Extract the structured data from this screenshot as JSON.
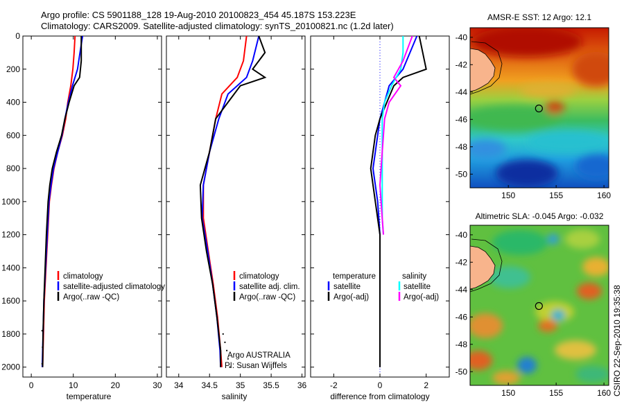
{
  "title": {
    "line1": "Argo profile: CS 5901188_128 19-Aug-2010 20100823_454 45.187S 153.223E",
    "line2": "Climatology: CARS2009. Satellite-adjusted climatology: synTS_20100821.nc (1.2d later)"
  },
  "side_text": "CSIRO 22-Sep-2010 19:35:38",
  "colors": {
    "climatology": "#ff0000",
    "satellite": "#0000ff",
    "argo": "#000000",
    "salinity_satellite": "#00ffff",
    "salinity_argo": "#ff00ff"
  },
  "chart_data": [
    {
      "type": "line",
      "name": "temperature-profile",
      "xlabel": "temperature",
      "xlim": [
        -2,
        31
      ],
      "ylim": [
        2060,
        0
      ],
      "xticks": [
        "0",
        "10",
        "20",
        "30"
      ],
      "yticks": [
        "0",
        "200",
        "400",
        "600",
        "800",
        "1000",
        "1200",
        "1400",
        "1600",
        "1800",
        "2000"
      ],
      "legend": [
        "climatology",
        "satellite-adjusted climatology",
        "Argo(..raw -QC)"
      ],
      "series": [
        {
          "name": "climatology",
          "points": [
            [
              10.4,
              0
            ],
            [
              10.2,
              100
            ],
            [
              9.9,
              200
            ],
            [
              9.4,
              300
            ],
            [
              8.7,
              400
            ],
            [
              8.2,
              500
            ],
            [
              7.4,
              600
            ],
            [
              6.3,
              700
            ],
            [
              5.4,
              800
            ],
            [
              4.8,
              900
            ],
            [
              4.3,
              1000
            ],
            [
              3.9,
              1200
            ],
            [
              3.5,
              1400
            ],
            [
              3.1,
              1600
            ],
            [
              2.9,
              1800
            ],
            [
              2.7,
              2000
            ]
          ]
        },
        {
          "name": "satellite",
          "points": [
            [
              12.2,
              0
            ],
            [
              11.6,
              100
            ],
            [
              11.0,
              200
            ],
            [
              9.8,
              300
            ],
            [
              8.8,
              400
            ],
            [
              8.0,
              500
            ],
            [
              7.3,
              600
            ],
            [
              6.3,
              700
            ],
            [
              5.3,
              800
            ],
            [
              4.7,
              900
            ],
            [
              4.2,
              1000
            ],
            [
              3.8,
              1200
            ],
            [
              3.4,
              1400
            ],
            [
              3.0,
              1600
            ],
            [
              2.8,
              1800
            ],
            [
              2.6,
              2000
            ]
          ]
        },
        {
          "name": "argo",
          "points": [
            [
              11.9,
              0
            ],
            [
              11.9,
              150
            ],
            [
              11.5,
              250
            ],
            [
              10.2,
              300
            ],
            [
              9.0,
              400
            ],
            [
              8.0,
              500
            ],
            [
              7.2,
              600
            ],
            [
              6.0,
              700
            ],
            [
              5.0,
              800
            ],
            [
              4.4,
              900
            ],
            [
              4.0,
              1000
            ],
            [
              3.6,
              1200
            ],
            [
              3.3,
              1400
            ],
            [
              3.0,
              1600
            ],
            [
              2.8,
              1800
            ],
            [
              2.7,
              2000
            ]
          ]
        }
      ]
    },
    {
      "type": "line",
      "name": "salinity-profile",
      "xlabel": "salinity",
      "xlim": [
        33.8,
        36.05
      ],
      "ylim": [
        2060,
        0
      ],
      "xticks": [
        "34",
        "34.5",
        "35",
        "35.5",
        "36"
      ],
      "legend": [
        "climatology",
        "satellite adj. clim.",
        "Argo(..raw -QC)"
      ],
      "annotation": [
        "Argo AUSTRALIA",
        "PI: Susan Wijffels"
      ],
      "series": [
        {
          "name": "climatology",
          "points": [
            [
              35.1,
              0
            ],
            [
              35.05,
              150
            ],
            [
              34.95,
              250
            ],
            [
              34.7,
              350
            ],
            [
              34.6,
              500
            ],
            [
              34.5,
              700
            ],
            [
              34.4,
              900
            ],
            [
              34.4,
              1100
            ],
            [
              34.48,
              1300
            ],
            [
              34.56,
              1500
            ],
            [
              34.63,
              1700
            ],
            [
              34.68,
              1900
            ],
            [
              34.7,
              2000
            ]
          ]
        },
        {
          "name": "satellite",
          "points": [
            [
              35.3,
              0
            ],
            [
              35.2,
              150
            ],
            [
              35.1,
              250
            ],
            [
              34.8,
              350
            ],
            [
              34.65,
              500
            ],
            [
              34.5,
              700
            ],
            [
              34.4,
              900
            ],
            [
              34.38,
              1100
            ],
            [
              34.47,
              1300
            ],
            [
              34.55,
              1500
            ],
            [
              34.62,
              1700
            ],
            [
              34.67,
              1900
            ],
            [
              34.68,
              2000
            ]
          ]
        },
        {
          "name": "argo",
          "points": [
            [
              35.3,
              0
            ],
            [
              35.4,
              100
            ],
            [
              35.2,
              200
            ],
            [
              35.4,
              250
            ],
            [
              35.0,
              300
            ],
            [
              34.8,
              400
            ],
            [
              34.6,
              500
            ],
            [
              34.5,
              700
            ],
            [
              34.35,
              900
            ],
            [
              34.37,
              1100
            ],
            [
              34.45,
              1300
            ],
            [
              34.55,
              1500
            ],
            [
              34.62,
              1700
            ],
            [
              34.68,
              1900
            ],
            [
              34.68,
              2000
            ]
          ]
        }
      ]
    },
    {
      "type": "line",
      "name": "difference-profile",
      "xlabel": "difference from climatology",
      "xlim": [
        -3,
        3
      ],
      "ylim": [
        2060,
        0
      ],
      "xticks": [
        "-2",
        "0",
        "2"
      ],
      "legend_titles": [
        "temperature",
        "salinity"
      ],
      "legend": [
        "satellite",
        "Argo(-adj)",
        "satellite",
        "Argo(-adj)"
      ],
      "series": [
        {
          "name": "temperature-satellite",
          "points": [
            [
              1.6,
              0
            ],
            [
              1.3,
              100
            ],
            [
              1.0,
              200
            ],
            [
              0.4,
              300
            ],
            [
              0.2,
              400
            ],
            [
              0.0,
              500
            ],
            [
              -0.1,
              600
            ],
            [
              -0.3,
              800
            ],
            [
              -0.1,
              1000
            ],
            [
              0.0,
              1200
            ],
            [
              0.0,
              1600
            ],
            [
              0.0,
              2000
            ]
          ]
        },
        {
          "name": "temperature-argo",
          "points": [
            [
              1.7,
              0
            ],
            [
              2.0,
              200
            ],
            [
              1.0,
              250
            ],
            [
              0.6,
              300
            ],
            [
              0.3,
              400
            ],
            [
              0.0,
              500
            ],
            [
              -0.2,
              600
            ],
            [
              -0.4,
              800
            ],
            [
              -0.2,
              1000
            ],
            [
              0.0,
              1200
            ],
            [
              0.0,
              1600
            ],
            [
              0.0,
              2000
            ]
          ]
        },
        {
          "name": "salinity-satellite",
          "points": [
            [
              1.0,
              0
            ],
            [
              1.0,
              100
            ],
            [
              0.9,
              200
            ],
            [
              0.5,
              300
            ],
            [
              0.2,
              400
            ],
            [
              0.1,
              500
            ],
            [
              0.1,
              700
            ],
            [
              0.1,
              900
            ],
            [
              0.1,
              1100
            ],
            [
              0.15,
              1200
            ]
          ]
        },
        {
          "name": "salinity-argo",
          "points": [
            [
              1.4,
              0
            ],
            [
              1.0,
              150
            ],
            [
              0.6,
              250
            ],
            [
              0.9,
              300
            ],
            [
              0.4,
              400
            ],
            [
              0.2,
              500
            ],
            [
              0.1,
              700
            ],
            [
              0.0,
              900
            ],
            [
              0.1,
              1100
            ],
            [
              0.15,
              1200
            ]
          ]
        }
      ]
    }
  ],
  "maps": [
    {
      "title": "AMSR-E SST: 12 Argo: 12.1",
      "xticks": [
        "150",
        "155",
        "160"
      ],
      "yticks": [
        "-40",
        "-42",
        "-44",
        "-46",
        "-48",
        "-50"
      ],
      "lon_range": [
        146,
        160.5
      ],
      "lat_range": [
        -51,
        -39.3
      ],
      "marker": [
        153.2,
        -45.2
      ]
    },
    {
      "title": "Altimetric SLA: -0.045 Argo: -0.032",
      "xticks": [
        "150",
        "155",
        "160"
      ],
      "yticks": [
        "-40",
        "-42",
        "-44",
        "-46",
        "-48",
        "-50"
      ],
      "lon_range": [
        146,
        160.5
      ],
      "lat_range": [
        -51,
        -39.3
      ],
      "marker": [
        153.2,
        -45.2
      ]
    }
  ]
}
